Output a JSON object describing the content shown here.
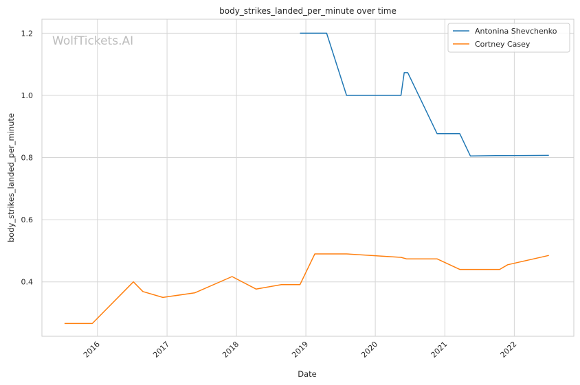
{
  "chart_data": {
    "type": "line",
    "title": "body_strikes_landed_per_minute over time",
    "xlabel": "Date",
    "ylabel": "body_strikes_landed_per_minute",
    "watermark": "WolfTickets.AI",
    "x_ticks": [
      "2016",
      "2017",
      "2018",
      "2019",
      "2020",
      "2021",
      "2022"
    ],
    "y_ticks": [
      "0.4",
      "0.6",
      "0.8",
      "1.0",
      "1.2"
    ],
    "xlim": [
      "2015-03-15",
      "2022-11-10"
    ],
    "ylim": [
      0.225,
      1.245
    ],
    "grid": true,
    "legend_position": "top-right",
    "series": [
      {
        "name": "Antonina Shevchenko",
        "color": "#1f77b4",
        "points": [
          [
            "2018-12-01",
            1.2
          ],
          [
            "2019-04-20",
            1.2
          ],
          [
            "2019-08-03",
            1.0
          ],
          [
            "2020-05-15",
            1.0
          ],
          [
            "2020-06-01",
            1.073
          ],
          [
            "2020-06-20",
            1.073
          ],
          [
            "2020-11-21",
            0.877
          ],
          [
            "2021-03-20",
            0.877
          ],
          [
            "2021-05-15",
            0.805
          ],
          [
            "2021-09-25",
            0.806
          ],
          [
            "2022-07-02",
            0.807
          ]
        ]
      },
      {
        "name": "Cortney Casey",
        "color": "#ff7f0e",
        "points": [
          [
            "2015-07-12",
            0.266
          ],
          [
            "2015-12-05",
            0.266
          ],
          [
            "2016-07-08",
            0.4
          ],
          [
            "2016-08-27",
            0.369
          ],
          [
            "2016-12-10",
            0.35
          ],
          [
            "2017-05-28",
            0.365
          ],
          [
            "2017-12-09",
            0.417
          ],
          [
            "2018-04-14",
            0.377
          ],
          [
            "2018-08-25",
            0.391
          ],
          [
            "2018-12-01",
            0.391
          ],
          [
            "2019-02-17",
            0.49
          ],
          [
            "2019-08-03",
            0.49
          ],
          [
            "2020-05-15",
            0.479
          ],
          [
            "2020-06-13",
            0.474
          ],
          [
            "2020-11-21",
            0.474
          ],
          [
            "2021-03-20",
            0.44
          ],
          [
            "2021-10-16",
            0.44
          ],
          [
            "2021-11-27",
            0.455
          ],
          [
            "2022-07-02",
            0.485
          ]
        ]
      }
    ]
  }
}
